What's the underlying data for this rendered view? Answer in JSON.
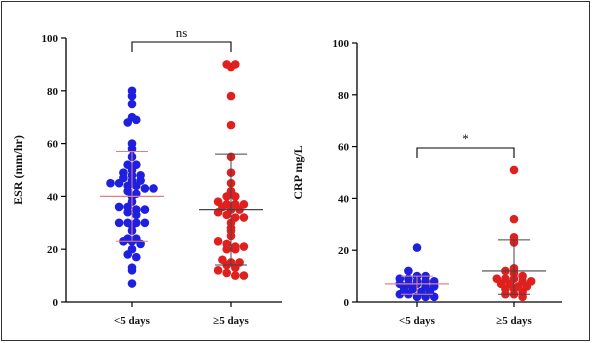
{
  "chart_data": [
    {
      "type": "scatter",
      "ylabel": "ESR (mm/hr)",
      "ylim": [
        0,
        100
      ],
      "yticks": [
        0,
        20,
        40,
        60,
        80,
        100
      ],
      "categories": [
        "<5 days",
        "≥5 days"
      ],
      "significance": "ns",
      "series": [
        {
          "category": "<5 days",
          "color": "#1f1fe0",
          "mean": 40,
          "sd_low": 23,
          "sd_high": 57,
          "values": [
            80,
            78,
            75,
            70,
            68,
            69,
            60,
            58,
            55,
            52,
            52,
            50,
            49,
            48,
            48,
            47,
            46,
            46,
            45,
            45,
            44,
            44,
            43,
            43,
            42,
            41,
            40,
            38,
            36,
            36,
            35,
            35,
            34,
            33,
            30,
            30,
            30,
            30,
            29,
            27,
            24,
            24,
            23,
            23,
            22,
            20,
            18,
            17,
            13,
            12,
            7
          ]
        },
        {
          "category": "≥5 days",
          "color": "#e01f1f",
          "mean": 35,
          "sd_low": 14,
          "sd_high": 56,
          "values": [
            90,
            90,
            89,
            78,
            67,
            55,
            49,
            45,
            42,
            40,
            40,
            38,
            37,
            37,
            37,
            36,
            35,
            35,
            34,
            33,
            32,
            32,
            30,
            28,
            27,
            25,
            23,
            22,
            21,
            21,
            20,
            20,
            16,
            15,
            15,
            14,
            13,
            12,
            11,
            10,
            10
          ]
        }
      ]
    },
    {
      "type": "scatter",
      "ylabel": "CRP mg/L",
      "ylim": [
        0,
        100
      ],
      "yticks": [
        0,
        20,
        40,
        60,
        80,
        100
      ],
      "categories": [
        "<5 days",
        "≥5 days"
      ],
      "significance": "*",
      "series": [
        {
          "category": "<5 days",
          "color": "#1f1fe0",
          "mean": 7,
          "sd_low": 3,
          "sd_high": 10,
          "values": [
            21,
            12,
            10,
            10,
            9,
            9,
            8,
            8,
            8,
            7,
            7,
            7,
            6,
            6,
            5,
            5,
            4,
            4,
            3,
            3,
            2,
            2,
            2
          ]
        },
        {
          "category": "≥5 days",
          "color": "#e01f1f",
          "mean": 12,
          "sd_low": 3,
          "sd_high": 24,
          "values": [
            51,
            32,
            25,
            23,
            13,
            12,
            11,
            10,
            9,
            9,
            9,
            8,
            8,
            7,
            7,
            6,
            6,
            5,
            5,
            4,
            3,
            3,
            2
          ]
        }
      ]
    }
  ]
}
